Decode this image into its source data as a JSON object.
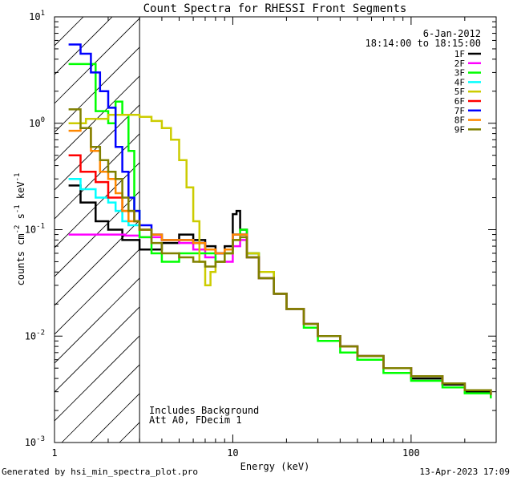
{
  "chart_data": {
    "type": "line",
    "title": "Count Spectra for RHESSI Front Segments",
    "xlabel": "Energy (keV)",
    "ylabel": "counts cm^-2 s^-1 keV^-1",
    "xscale": "log",
    "yscale": "log",
    "xlim": [
      1,
      300
    ],
    "ylim": [
      0.001,
      10
    ],
    "x_ticks": [
      {
        "value": 1,
        "label": "1"
      },
      {
        "value": 10,
        "label": "10"
      },
      {
        "value": 100,
        "label": "100"
      }
    ],
    "y_ticks": [
      {
        "value": 0.001,
        "mant": "10",
        "exp": "-3"
      },
      {
        "value": 0.01,
        "mant": "10",
        "exp": "-2"
      },
      {
        "value": 0.1,
        "mant": "10",
        "exp": "-1"
      },
      {
        "value": 1,
        "mant": "10",
        "exp": "0"
      },
      {
        "value": 10,
        "mant": "10",
        "exp": "1"
      }
    ],
    "date": "6-Jan-2012",
    "time_range": "18:14:00 to 18:15:00",
    "annotations": [
      "Includes Background",
      "Att A0, FDecim 1"
    ],
    "shaded_region": {
      "xmin": 1,
      "xmax": 3
    },
    "series": [
      {
        "name": "1F",
        "color": "#000000",
        "points": [
          [
            1.2,
            0.26
          ],
          [
            1.4,
            0.18
          ],
          [
            1.7,
            0.12
          ],
          [
            2.0,
            0.1
          ],
          [
            2.4,
            0.08
          ],
          [
            3.0,
            0.065
          ],
          [
            4.0,
            0.075
          ],
          [
            5.0,
            0.09
          ],
          [
            6.0,
            0.08
          ],
          [
            7.0,
            0.07
          ],
          [
            8.0,
            0.06
          ],
          [
            9.0,
            0.07
          ],
          [
            10.0,
            0.14
          ],
          [
            10.5,
            0.15
          ],
          [
            11.0,
            0.1
          ],
          [
            12.0,
            0.06
          ],
          [
            14.0,
            0.04
          ],
          [
            17.0,
            0.025
          ],
          [
            20.0,
            0.018
          ],
          [
            25.0,
            0.013
          ],
          [
            30.0,
            0.01
          ],
          [
            40.0,
            0.008
          ],
          [
            50.0,
            0.006
          ],
          [
            70.0,
            0.005
          ],
          [
            100.0,
            0.004
          ],
          [
            150.0,
            0.0035
          ],
          [
            200.0,
            0.003
          ],
          [
            280.0,
            0.0028
          ]
        ]
      },
      {
        "name": "2F",
        "color": "#ff00ff",
        "points": [
          [
            1.2,
            0.09
          ],
          [
            1.6,
            0.09
          ],
          [
            2.0,
            0.09
          ],
          [
            2.5,
            0.088
          ],
          [
            3.0,
            0.085
          ],
          [
            4.0,
            0.08
          ],
          [
            5.0,
            0.075
          ],
          [
            6.0,
            0.065
          ],
          [
            7.0,
            0.055
          ],
          [
            8.0,
            0.05
          ],
          [
            9.0,
            0.05
          ],
          [
            10.0,
            0.07
          ],
          [
            11.0,
            0.08
          ],
          [
            12.0,
            0.055
          ],
          [
            14.0,
            0.035
          ],
          [
            17.0,
            0.025
          ],
          [
            20.0,
            0.018
          ],
          [
            25.0,
            0.013
          ],
          [
            30.0,
            0.01
          ],
          [
            40.0,
            0.008
          ],
          [
            50.0,
            0.0065
          ],
          [
            70.0,
            0.005
          ],
          [
            100.0,
            0.0042
          ],
          [
            150.0,
            0.0036
          ],
          [
            200.0,
            0.0031
          ],
          [
            280.0,
            0.0028
          ]
        ]
      },
      {
        "name": "3F",
        "color": "#00ff00",
        "points": [
          [
            1.2,
            3.6
          ],
          [
            1.4,
            3.6
          ],
          [
            1.7,
            1.3
          ],
          [
            2.0,
            1.0
          ],
          [
            2.2,
            1.6
          ],
          [
            2.4,
            1.2
          ],
          [
            2.6,
            0.55
          ],
          [
            2.8,
            0.15
          ],
          [
            3.0,
            0.085
          ],
          [
            3.5,
            0.06
          ],
          [
            4.0,
            0.05
          ],
          [
            5.0,
            0.06
          ],
          [
            6.0,
            0.06
          ],
          [
            7.0,
            0.06
          ],
          [
            8.0,
            0.05
          ],
          [
            9.0,
            0.06
          ],
          [
            10.0,
            0.09
          ],
          [
            11.0,
            0.1
          ],
          [
            12.0,
            0.06
          ],
          [
            14.0,
            0.04
          ],
          [
            17.0,
            0.025
          ],
          [
            20.0,
            0.018
          ],
          [
            25.0,
            0.012
          ],
          [
            30.0,
            0.009
          ],
          [
            40.0,
            0.007
          ],
          [
            50.0,
            0.006
          ],
          [
            70.0,
            0.0045
          ],
          [
            100.0,
            0.0038
          ],
          [
            150.0,
            0.0033
          ],
          [
            200.0,
            0.0029
          ],
          [
            280.0,
            0.0026
          ]
        ]
      },
      {
        "name": "4F",
        "color": "#00ffff",
        "points": [
          [
            1.2,
            0.3
          ],
          [
            1.4,
            0.24
          ],
          [
            1.7,
            0.2
          ],
          [
            2.0,
            0.18
          ],
          [
            2.2,
            0.15
          ],
          [
            2.4,
            0.12
          ],
          [
            2.6,
            0.11
          ],
          [
            3.0,
            0.1
          ],
          [
            3.5,
            0.09
          ],
          [
            4.0,
            0.08
          ],
          [
            5.0,
            0.08
          ],
          [
            6.0,
            0.075
          ],
          [
            7.0,
            0.065
          ],
          [
            8.0,
            0.06
          ],
          [
            9.0,
            0.065
          ],
          [
            10.0,
            0.09
          ],
          [
            11.0,
            0.09
          ],
          [
            12.0,
            0.055
          ],
          [
            14.0,
            0.035
          ],
          [
            17.0,
            0.025
          ],
          [
            20.0,
            0.018
          ],
          [
            25.0,
            0.013
          ],
          [
            30.0,
            0.01
          ],
          [
            40.0,
            0.008
          ],
          [
            50.0,
            0.0065
          ],
          [
            70.0,
            0.005
          ],
          [
            100.0,
            0.0042
          ],
          [
            150.0,
            0.0036
          ],
          [
            200.0,
            0.0031
          ],
          [
            280.0,
            0.0028
          ]
        ]
      },
      {
        "name": "5F",
        "color": "#cccc00",
        "points": [
          [
            1.2,
            1.0
          ],
          [
            1.5,
            1.1
          ],
          [
            2.0,
            1.2
          ],
          [
            2.5,
            1.2
          ],
          [
            3.0,
            1.15
          ],
          [
            3.5,
            1.05
          ],
          [
            4.0,
            0.9
          ],
          [
            4.5,
            0.7
          ],
          [
            5.0,
            0.45
          ],
          [
            5.5,
            0.25
          ],
          [
            6.0,
            0.12
          ],
          [
            6.5,
            0.05
          ],
          [
            7.0,
            0.03
          ],
          [
            7.5,
            0.04
          ],
          [
            8.0,
            0.05
          ],
          [
            9.0,
            0.06
          ],
          [
            10.0,
            0.08
          ],
          [
            11.0,
            0.09
          ],
          [
            12.0,
            0.06
          ],
          [
            14.0,
            0.04
          ],
          [
            17.0,
            0.025
          ],
          [
            20.0,
            0.018
          ],
          [
            25.0,
            0.013
          ],
          [
            30.0,
            0.01
          ],
          [
            40.0,
            0.008
          ],
          [
            50.0,
            0.0065
          ],
          [
            70.0,
            0.005
          ],
          [
            100.0,
            0.0042
          ],
          [
            150.0,
            0.0036
          ],
          [
            200.0,
            0.0031
          ],
          [
            280.0,
            0.0028
          ]
        ]
      },
      {
        "name": "6F",
        "color": "#ff0000",
        "points": [
          [
            1.2,
            0.5
          ],
          [
            1.4,
            0.35
          ],
          [
            1.7,
            0.28
          ],
          [
            2.0,
            0.2
          ],
          [
            2.4,
            0.15
          ],
          [
            2.8,
            0.12
          ],
          [
            3.0,
            0.1
          ],
          [
            3.5,
            0.09
          ],
          [
            4.0,
            0.08
          ],
          [
            5.0,
            0.08
          ],
          [
            6.0,
            0.075
          ],
          [
            7.0,
            0.065
          ],
          [
            8.0,
            0.06
          ],
          [
            9.0,
            0.065
          ],
          [
            10.0,
            0.09
          ],
          [
            11.0,
            0.09
          ],
          [
            12.0,
            0.055
          ],
          [
            14.0,
            0.035
          ],
          [
            17.0,
            0.025
          ],
          [
            20.0,
            0.018
          ],
          [
            25.0,
            0.013
          ],
          [
            30.0,
            0.01
          ],
          [
            40.0,
            0.008
          ],
          [
            50.0,
            0.0065
          ],
          [
            70.0,
            0.005
          ],
          [
            100.0,
            0.0042
          ],
          [
            150.0,
            0.0036
          ],
          [
            200.0,
            0.0031
          ],
          [
            280.0,
            0.0028
          ]
        ]
      },
      {
        "name": "7F",
        "color": "#0000ff",
        "points": [
          [
            1.2,
            5.5
          ],
          [
            1.4,
            4.5
          ],
          [
            1.6,
            3.0
          ],
          [
            1.8,
            2.0
          ],
          [
            2.0,
            1.4
          ],
          [
            2.2,
            0.6
          ],
          [
            2.4,
            0.35
          ],
          [
            2.6,
            0.2
          ],
          [
            2.8,
            0.15
          ],
          [
            3.0,
            0.11
          ],
          [
            3.5,
            0.09
          ],
          [
            4.0,
            0.08
          ],
          [
            5.0,
            0.08
          ],
          [
            6.0,
            0.075
          ],
          [
            7.0,
            0.065
          ],
          [
            8.0,
            0.06
          ],
          [
            9.0,
            0.065
          ],
          [
            10.0,
            0.09
          ],
          [
            11.0,
            0.09
          ],
          [
            12.0,
            0.055
          ],
          [
            14.0,
            0.035
          ],
          [
            17.0,
            0.025
          ],
          [
            20.0,
            0.018
          ],
          [
            25.0,
            0.013
          ],
          [
            30.0,
            0.01
          ],
          [
            40.0,
            0.008
          ],
          [
            50.0,
            0.0065
          ],
          [
            70.0,
            0.005
          ],
          [
            100.0,
            0.0042
          ],
          [
            150.0,
            0.0036
          ],
          [
            200.0,
            0.0031
          ],
          [
            280.0,
            0.0028
          ]
        ]
      },
      {
        "name": "8F",
        "color": "#ff8800",
        "points": [
          [
            1.2,
            0.85
          ],
          [
            1.4,
            0.9
          ],
          [
            1.6,
            0.55
          ],
          [
            1.8,
            0.35
          ],
          [
            2.0,
            0.3
          ],
          [
            2.2,
            0.22
          ],
          [
            2.4,
            0.15
          ],
          [
            2.6,
            0.12
          ],
          [
            3.0,
            0.1
          ],
          [
            3.5,
            0.09
          ],
          [
            4.0,
            0.08
          ],
          [
            5.0,
            0.08
          ],
          [
            6.0,
            0.075
          ],
          [
            7.0,
            0.065
          ],
          [
            8.0,
            0.06
          ],
          [
            9.0,
            0.065
          ],
          [
            10.0,
            0.09
          ],
          [
            11.0,
            0.09
          ],
          [
            12.0,
            0.055
          ],
          [
            14.0,
            0.035
          ],
          [
            17.0,
            0.025
          ],
          [
            20.0,
            0.018
          ],
          [
            25.0,
            0.013
          ],
          [
            30.0,
            0.01
          ],
          [
            40.0,
            0.008
          ],
          [
            50.0,
            0.0065
          ],
          [
            70.0,
            0.005
          ],
          [
            100.0,
            0.0042
          ],
          [
            150.0,
            0.0036
          ],
          [
            200.0,
            0.0031
          ],
          [
            280.0,
            0.0028
          ]
        ]
      },
      {
        "name": "9F",
        "color": "#808000",
        "points": [
          [
            1.2,
            1.35
          ],
          [
            1.4,
            0.9
          ],
          [
            1.6,
            0.6
          ],
          [
            1.8,
            0.45
          ],
          [
            2.0,
            0.35
          ],
          [
            2.2,
            0.3
          ],
          [
            2.4,
            0.2
          ],
          [
            2.6,
            0.15
          ],
          [
            2.8,
            0.12
          ],
          [
            3.0,
            0.1
          ],
          [
            3.5,
            0.075
          ],
          [
            4.0,
            0.06
          ],
          [
            5.0,
            0.055
          ],
          [
            6.0,
            0.05
          ],
          [
            7.0,
            0.045
          ],
          [
            8.0,
            0.05
          ],
          [
            9.0,
            0.06
          ],
          [
            10.0,
            0.08
          ],
          [
            11.0,
            0.085
          ],
          [
            12.0,
            0.055
          ],
          [
            14.0,
            0.035
          ],
          [
            17.0,
            0.025
          ],
          [
            20.0,
            0.018
          ],
          [
            25.0,
            0.013
          ],
          [
            30.0,
            0.01
          ],
          [
            40.0,
            0.008
          ],
          [
            50.0,
            0.0065
          ],
          [
            70.0,
            0.005
          ],
          [
            100.0,
            0.0042
          ],
          [
            150.0,
            0.0036
          ],
          [
            200.0,
            0.0031
          ],
          [
            280.0,
            0.0028
          ]
        ]
      }
    ]
  },
  "footer": {
    "generated": "Generated by hsi_min_spectra_plot.pro",
    "timestamp": "13-Apr-2023 17:09"
  }
}
